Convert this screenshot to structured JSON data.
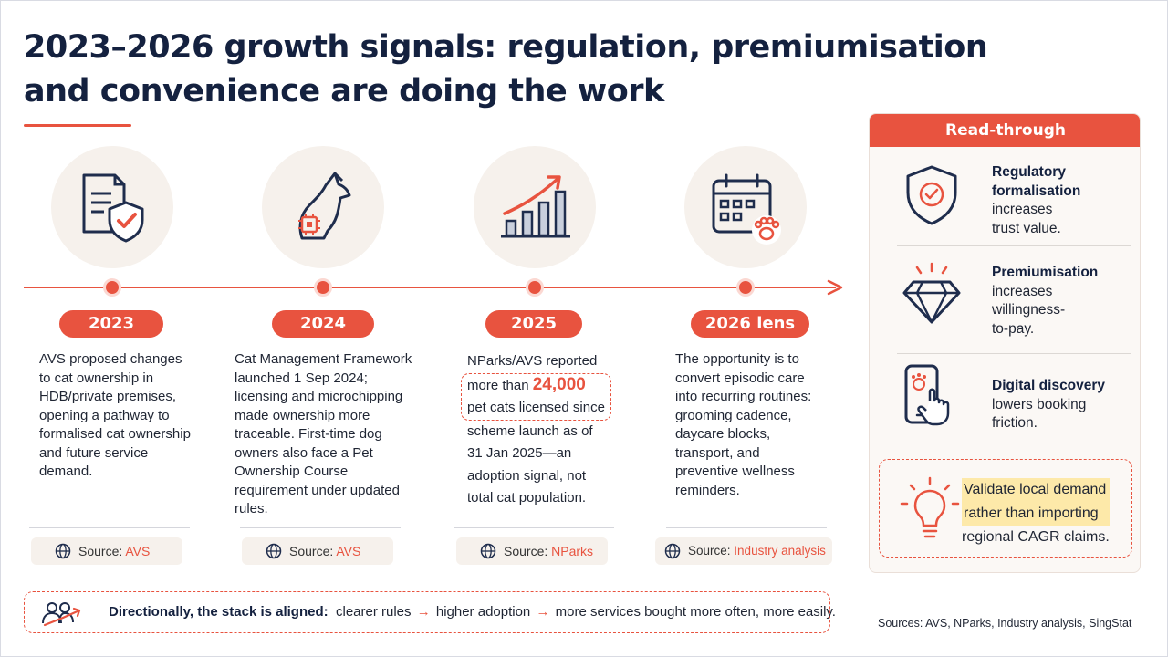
{
  "title": {
    "line1": "2023–2026 growth signals: regulation, premiumisation",
    "line2": "and convenience are doing the work"
  },
  "timeline": [
    {
      "year": "2023",
      "icon": "document-shield-check-icon",
      "lines": [
        "AVS proposed changes",
        "to cat ownership in",
        "HDB/private premises,",
        "opening a pathway to",
        "formalised cat ownership",
        "and future service",
        "demand."
      ],
      "source_label": "Source:",
      "source_value": "AVS"
    },
    {
      "year": "2024",
      "icon": "cat-microchip-icon",
      "lines": [
        "Cat Management Framework",
        "launched 1 Sep 2024;",
        "licensing and microchipping",
        "made ownership more",
        "traceable. First-time dog",
        "owners also face a Pet",
        "Ownership Course",
        "requirement under updated",
        "rules."
      ],
      "source_label": "Source:",
      "source_value": "AVS"
    },
    {
      "year": "2025",
      "icon": "bar-chart-growth-icon",
      "line_before": "NParks/AVS reported",
      "highlight_prefix": "more than",
      "highlight_number": "24,000",
      "highlight_suffix": "pet cats licensed since",
      "lines_after": [
        "scheme launch as of",
        "31 Jan 2025—an",
        "adoption signal, not",
        "total cat population."
      ],
      "source_label": "Source:",
      "source_value": "NParks"
    },
    {
      "year": "2026 lens",
      "icon": "calendar-paw-icon",
      "lines": [
        "The opportunity is to",
        "convert episodic care",
        "into recurring routines:",
        "grooming cadence,",
        "daycare blocks,",
        "transport, and",
        "preventive wellness",
        "reminders."
      ],
      "source_label": "Source:",
      "source_value": "Industry analysis"
    }
  ],
  "panel": {
    "title": "Read-through",
    "items": [
      {
        "icon": "shield-check-icon",
        "bold": [
          "Regulatory",
          "formalisation"
        ],
        "rest": [
          "increases",
          "trust value."
        ]
      },
      {
        "icon": "diamond-icon",
        "bold": [
          "Premiumisation"
        ],
        "rest": [
          "increases",
          "willingness-",
          "to-pay."
        ]
      },
      {
        "icon": "smartphone-tap-icon",
        "bold": [
          "Digital discovery"
        ],
        "rest": [
          "lowers booking",
          "friction."
        ]
      }
    ],
    "callout": {
      "icon": "lightbulb-icon",
      "highlight_lines": [
        "Validate local demand",
        "rather than importing"
      ],
      "line3": "regional CAGR claims."
    }
  },
  "bottom": {
    "icon": "people-growth-icon",
    "bold": "Directionally, the stack is aligned:",
    "step1": "clearer rules",
    "arrow": "→",
    "step2": "higher adoption",
    "step3": "more services bought more often, more easily."
  },
  "sources_line": "Sources: AVS, NParks, Industry analysis, SingStat",
  "colors": {
    "accent": "#e8533f",
    "navy": "#14213f",
    "panel_bg": "#fbf8f5",
    "circle_bg": "#f6f1ec",
    "highlight": "#fde9a9"
  }
}
